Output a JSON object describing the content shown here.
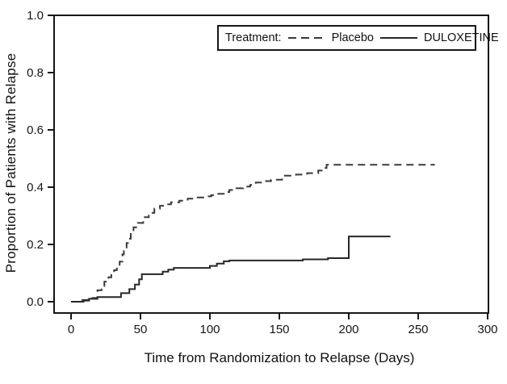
{
  "chart_data": {
    "type": "line",
    "subtype": "step-after",
    "title": "",
    "xlabel": "Time from Randomization to Relapse (Days)",
    "ylabel": "Proportion of Patients with Relapse",
    "xlim": [
      0,
      300
    ],
    "ylim": [
      0,
      1
    ],
    "x_ticks": [
      "0",
      "50",
      "100",
      "150",
      "200",
      "250",
      "300"
    ],
    "y_ticks": [
      "0.0",
      "0.2",
      "0.4",
      "0.6",
      "0.8",
      "1.0"
    ],
    "grid": false,
    "frame": true,
    "axis_color": "#161616",
    "legend": {
      "title": "Treatment:",
      "position": "top-right-inside"
    },
    "series": [
      {
        "name": "Placebo",
        "style": "dashed",
        "color": "#3a3a3a",
        "steps": [
          [
            0,
            0
          ],
          [
            8,
            0.006
          ],
          [
            12,
            0.013
          ],
          [
            19,
            0.04
          ],
          [
            22,
            0.055
          ],
          [
            24,
            0.07
          ],
          [
            27,
            0.085
          ],
          [
            29,
            0.1
          ],
          [
            31,
            0.11
          ],
          [
            33,
            0.125
          ],
          [
            35,
            0.14
          ],
          [
            37,
            0.165
          ],
          [
            38,
            0.18
          ],
          [
            40,
            0.205
          ],
          [
            41,
            0.22
          ],
          [
            43,
            0.245
          ],
          [
            45,
            0.26
          ],
          [
            48,
            0.275
          ],
          [
            52,
            0.295
          ],
          [
            56,
            0.31
          ],
          [
            60,
            0.325
          ],
          [
            64,
            0.335
          ],
          [
            68,
            0.34
          ],
          [
            72,
            0.347
          ],
          [
            78,
            0.353
          ],
          [
            84,
            0.36
          ],
          [
            90,
            0.364
          ],
          [
            96,
            0.368
          ],
          [
            101,
            0.372
          ],
          [
            106,
            0.377
          ],
          [
            110,
            0.383
          ],
          [
            114,
            0.39
          ],
          [
            119,
            0.396
          ],
          [
            124,
            0.402
          ],
          [
            129,
            0.408
          ],
          [
            133,
            0.416
          ],
          [
            139,
            0.421
          ],
          [
            144,
            0.426
          ],
          [
            152,
            0.44
          ],
          [
            162,
            0.444
          ],
          [
            170,
            0.449
          ],
          [
            178,
            0.458
          ],
          [
            182,
            0.467
          ],
          [
            184,
            0.478
          ],
          [
            262,
            0.478
          ]
        ]
      },
      {
        "name": "DULOXETINE",
        "style": "solid",
        "color": "#262626",
        "steps": [
          [
            0,
            0
          ],
          [
            9,
            0.004
          ],
          [
            13,
            0.01
          ],
          [
            19,
            0.016
          ],
          [
            36,
            0.03
          ],
          [
            42,
            0.044
          ],
          [
            46,
            0.06
          ],
          [
            49,
            0.078
          ],
          [
            51,
            0.096
          ],
          [
            66,
            0.105
          ],
          [
            70,
            0.112
          ],
          [
            74,
            0.118
          ],
          [
            100,
            0.125
          ],
          [
            105,
            0.133
          ],
          [
            110,
            0.141
          ],
          [
            114,
            0.144
          ],
          [
            167,
            0.148
          ],
          [
            185,
            0.152
          ],
          [
            200,
            0.228
          ],
          [
            230,
            0.228
          ]
        ]
      }
    ]
  }
}
